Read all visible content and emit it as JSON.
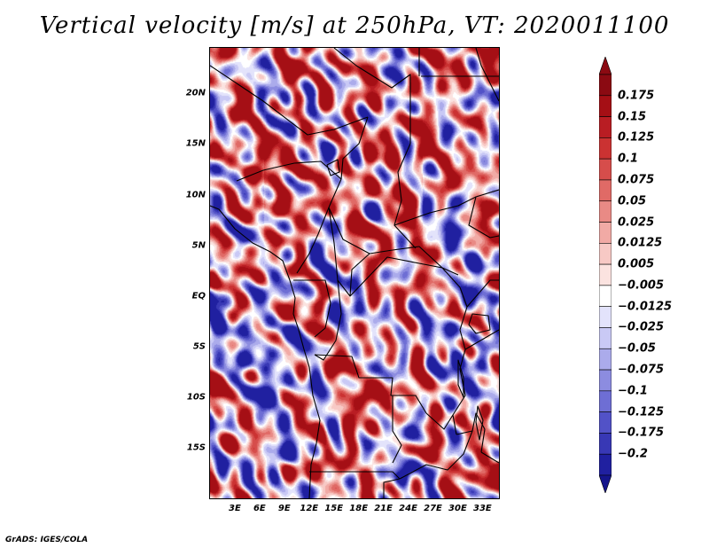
{
  "title": "Vertical velocity [m/s] at 250hPa, VT: 2020011100",
  "credit": "GrADS: IGES/COLA",
  "map": {
    "variable": "Vertical velocity",
    "units": "m/s",
    "level": "250hPa",
    "valid_time": "2020011100",
    "lat_range": [
      -20,
      24.5
    ],
    "lon_range": [
      0,
      35
    ],
    "lat_ticks": [
      {
        "value": 20,
        "label": "20N"
      },
      {
        "value": 15,
        "label": "15N"
      },
      {
        "value": 10,
        "label": "10N"
      },
      {
        "value": 5,
        "label": "5N"
      },
      {
        "value": 0,
        "label": "EQ"
      },
      {
        "value": -5,
        "label": "5S"
      },
      {
        "value": -10,
        "label": "10S"
      },
      {
        "value": -15,
        "label": "15S"
      }
    ],
    "lon_ticks": [
      {
        "value": 3,
        "label": "3E"
      },
      {
        "value": 6,
        "label": "6E"
      },
      {
        "value": 9,
        "label": "9E"
      },
      {
        "value": 12,
        "label": "12E"
      },
      {
        "value": 15,
        "label": "15E"
      },
      {
        "value": 18,
        "label": "18E"
      },
      {
        "value": 21,
        "label": "21E"
      },
      {
        "value": 24,
        "label": "24E"
      },
      {
        "value": 27,
        "label": "27E"
      },
      {
        "value": 30,
        "label": "30E"
      },
      {
        "value": 33,
        "label": "33E"
      }
    ]
  },
  "colorbar": {
    "levels": [
      {
        "label": "0.175",
        "color": "#a50f15"
      },
      {
        "label": "0.15",
        "color": "#b91d23"
      },
      {
        "label": "0.125",
        "color": "#cb3232"
      },
      {
        "label": "0.1",
        "color": "#d64d4b"
      },
      {
        "label": "0.075",
        "color": "#e06a66"
      },
      {
        "label": "0.05",
        "color": "#e98a85"
      },
      {
        "label": "0.025",
        "color": "#f1aaa5"
      },
      {
        "label": "0.0125",
        "color": "#f7c9c5"
      },
      {
        "label": "0.005",
        "color": "#fbe3e0"
      },
      {
        "label": "−0.005",
        "color": "#ffffff"
      },
      {
        "label": "−0.0125",
        "color": "#e3e3fb"
      },
      {
        "label": "−0.025",
        "color": "#c9c9f5"
      },
      {
        "label": "−0.05",
        "color": "#ababeb"
      },
      {
        "label": "−0.075",
        "color": "#8c8ce0"
      },
      {
        "label": "−0.1",
        "color": "#6e6ed4"
      },
      {
        "label": "−0.125",
        "color": "#5252c7"
      },
      {
        "label": "−0.175",
        "color": "#3838b5"
      },
      {
        "label": "−0.2",
        "color": "#2020a0"
      }
    ],
    "over_color": "#8b0a12",
    "under_color": "#15158c"
  }
}
